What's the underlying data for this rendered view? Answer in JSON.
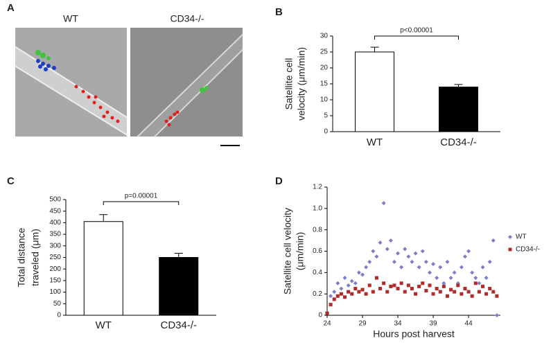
{
  "panel_labels": [
    "A",
    "B",
    "C",
    "D"
  ],
  "image_panel": {
    "labels": [
      "WT",
      "CD34-/-"
    ]
  },
  "chart_data": [
    {
      "type": "bar",
      "categories": [
        "WT",
        "CD34-/-"
      ],
      "values": [
        25,
        14
      ],
      "errors": [
        1.5,
        0.8
      ],
      "colors": [
        "#ffffff",
        "#000000"
      ],
      "ylim": [
        0,
        30
      ],
      "yticks": [
        0,
        5,
        10,
        15,
        20,
        25,
        30
      ],
      "ylabel": [
        "Satellite cell",
        "velocity (μm/min)"
      ],
      "annotation": "p<0.00001"
    },
    {
      "type": "bar",
      "categories": [
        "WT",
        "CD34-/-"
      ],
      "values": [
        405,
        250
      ],
      "errors": [
        30,
        18
      ],
      "colors": [
        "#ffffff",
        "#000000"
      ],
      "ylim": [
        0,
        500
      ],
      "yticks": [
        0,
        50,
        100,
        150,
        200,
        250,
        300,
        350,
        400,
        450,
        500
      ],
      "ylabel": [
        "Total distance",
        "traveled (μm)"
      ],
      "annotation": "p=0.00001"
    },
    {
      "type": "scatter",
      "x": [
        24,
        24.5,
        25,
        25.5,
        26,
        26.5,
        27,
        27.5,
        28,
        28.5,
        29,
        29.5,
        30,
        30.5,
        31,
        31.5,
        32,
        32.5,
        33,
        33.5,
        34,
        34.5,
        35,
        35.5,
        36,
        36.5,
        37,
        37.5,
        38,
        38.5,
        39,
        39.5,
        40,
        40.5,
        41,
        41.5,
        42,
        42.5,
        43,
        43.5,
        44,
        44.5,
        45,
        45.5,
        46,
        46.5,
        47,
        47.5,
        48
      ],
      "series": [
        {
          "name": "WT",
          "color": "#7b7fc4",
          "marker": "diamond",
          "values": [
            0.02,
            0.18,
            0.22,
            0.3,
            0.25,
            0.35,
            0.28,
            0.32,
            0.3,
            0.4,
            0.38,
            0.45,
            0.5,
            0.6,
            0.55,
            0.68,
            1.05,
            0.62,
            0.7,
            0.5,
            0.58,
            0.45,
            0.62,
            0.55,
            0.5,
            0.58,
            0.45,
            0.6,
            0.5,
            0.4,
            0.48,
            0.35,
            0.45,
            0.3,
            0.5,
            0.35,
            0.4,
            0.3,
            0.45,
            0.55,
            0.6,
            0.4,
            0.35,
            0.3,
            0.45,
            0.35,
            0.5,
            0.7,
            0.0
          ]
        },
        {
          "name": "CD34-/-",
          "color": "#b22a2a",
          "marker": "square",
          "values": [
            0.02,
            0.1,
            0.15,
            0.18,
            0.2,
            0.17,
            0.22,
            0.2,
            0.25,
            0.22,
            0.24,
            0.2,
            0.28,
            0.22,
            0.35,
            0.25,
            0.3,
            0.22,
            0.27,
            0.28,
            0.25,
            0.3,
            0.22,
            0.28,
            0.25,
            0.2,
            0.27,
            0.3,
            0.23,
            0.28,
            0.2,
            0.25,
            0.22,
            0.27,
            0.18,
            0.24,
            0.22,
            0.28,
            0.2,
            0.25,
            0.22,
            0.18,
            0.3,
            0.22,
            0.27,
            0.2,
            0.25,
            0.22,
            0.18
          ]
        }
      ],
      "xlim": [
        24,
        48.5
      ],
      "xticks": [
        24,
        29,
        34,
        39,
        44
      ],
      "ylim": [
        0,
        1.2
      ],
      "yticks": [
        0,
        0.2,
        0.4,
        0.6,
        0.8,
        {
          "value": 1,
          "label": "1.0"
        },
        1.2
      ],
      "xlabel": "Hours post harvest",
      "ylabel": [
        "Satellite cell velocity",
        "(μm/min)"
      ],
      "legend": "right"
    }
  ]
}
